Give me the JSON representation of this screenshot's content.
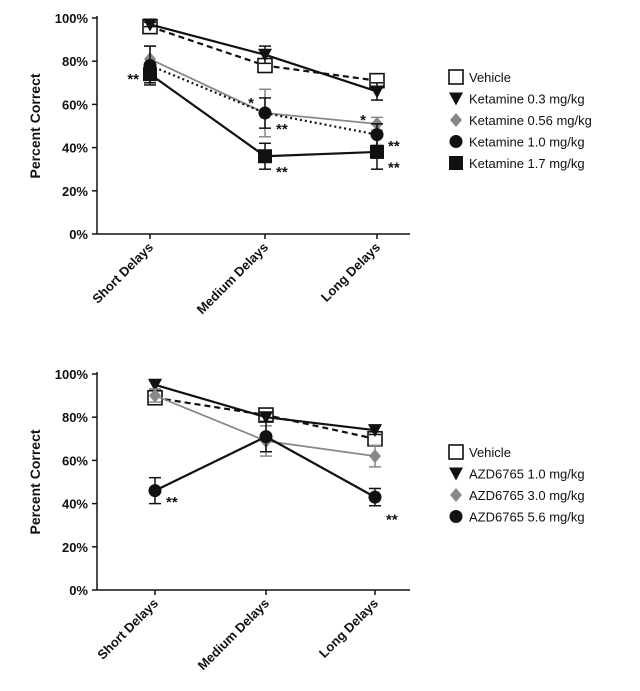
{
  "chart_data": [
    {
      "type": "line",
      "ylabel": "Percent Correct",
      "ylim": [
        0,
        100
      ],
      "y_tick_labels": [
        "0%",
        "20%",
        "40%",
        "60%",
        "80%",
        "100%"
      ],
      "categories": [
        "Short Delays",
        "Medium Delays",
        "Long Delays"
      ],
      "legend_position": "right",
      "series": [
        {
          "name": "Vehicle",
          "values": [
            96,
            78,
            71
          ],
          "errors": [
            2,
            2,
            2
          ],
          "marker": "open-square",
          "line": "dashed",
          "color": "#111111"
        },
        {
          "name": "Ketamine 0.3  mg/kg",
          "values": [
            97,
            83,
            66
          ],
          "errors": [
            1,
            4,
            4
          ],
          "marker": "triangle-down",
          "line": "solid",
          "color": "#111111"
        },
        {
          "name": "Ketamine 0.56 mg/kg",
          "values": [
            81,
            56,
            51
          ],
          "errors": [
            6,
            11,
            3
          ],
          "marker": "diamond",
          "line": "solid",
          "color": "#888888"
        },
        {
          "name": "Ketamine 1.0 mg/kg",
          "values": [
            78,
            56,
            46
          ],
          "errors": [
            9,
            7,
            5
          ],
          "marker": "circle",
          "line": "dotted",
          "color": "#111111"
        },
        {
          "name": "Ketamine 1.7 mg/kg",
          "values": [
            74,
            36,
            38
          ],
          "errors": [
            4,
            6,
            8
          ],
          "marker": "square",
          "line": "solid",
          "color": "#111111"
        }
      ],
      "annotations": [
        {
          "text": "**",
          "category": "Short Delays",
          "y": 74,
          "side": "left"
        },
        {
          "text": "*",
          "category": "Medium Delays",
          "y": 63,
          "side": "left"
        },
        {
          "text": "**",
          "category": "Medium Delays",
          "y": 51,
          "side": "right"
        },
        {
          "text": "**",
          "category": "Medium Delays",
          "y": 31,
          "side": "right"
        },
        {
          "text": "*",
          "category": "Long Delays",
          "y": 55,
          "side": "left"
        },
        {
          "text": "**",
          "category": "Long Delays",
          "y": 43,
          "side": "right"
        },
        {
          "text": "**",
          "category": "Long Delays",
          "y": 33,
          "side": "right"
        }
      ]
    },
    {
      "type": "line",
      "ylabel": "Percent Correct",
      "ylim": [
        0,
        100
      ],
      "y_tick_labels": [
        "0%",
        "20%",
        "40%",
        "60%",
        "80%",
        "100%"
      ],
      "categories": [
        "Short Delays",
        "Medium Delays",
        "Long Delays"
      ],
      "legend_position": "right",
      "series": [
        {
          "name": "Vehicle",
          "values": [
            89,
            81,
            70
          ],
          "errors": [
            3,
            2,
            3
          ],
          "marker": "open-square",
          "line": "dashed",
          "color": "#111111"
        },
        {
          "name": "AZD6765 1.0 mg/kg",
          "values": [
            95,
            80,
            74
          ],
          "errors": [
            2,
            2,
            2
          ],
          "marker": "triangle-down",
          "line": "solid",
          "color": "#111111"
        },
        {
          "name": "AZD6765 3.0 mg/kg",
          "values": [
            90,
            69,
            62
          ],
          "errors": [
            3,
            7,
            5
          ],
          "marker": "diamond",
          "line": "solid",
          "color": "#888888"
        },
        {
          "name": "AZD6765 5.6 mg/kg",
          "values": [
            46,
            71,
            43
          ],
          "errors": [
            6,
            7,
            4
          ],
          "marker": "circle",
          "line": "solid",
          "color": "#111111"
        }
      ],
      "annotations": [
        {
          "text": "**",
          "category": "Short Delays",
          "y": 43,
          "side": "right"
        },
        {
          "text": "**",
          "category": "Long Delays",
          "y": 35,
          "side": "right"
        }
      ]
    }
  ]
}
